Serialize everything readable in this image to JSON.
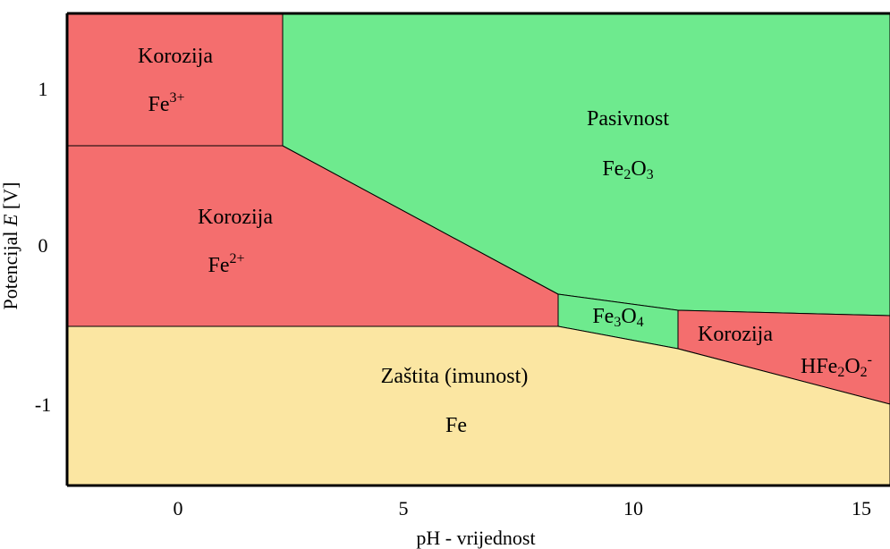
{
  "diagram": {
    "x_axis": {
      "label": "pH - vrijednost",
      "ticks": [
        {
          "value": 0,
          "label": "0"
        },
        {
          "value": 5,
          "label": "5"
        },
        {
          "value": 10,
          "label": "10"
        },
        {
          "value": 15,
          "label": "15"
        }
      ]
    },
    "y_axis": {
      "label_prefix": "Potencijal ",
      "label_italic": "E",
      "label_suffix": " [V]",
      "ticks": [
        {
          "value": 1,
          "label": "1"
        },
        {
          "value": 0,
          "label": "0"
        },
        {
          "value": -1,
          "label": "-1"
        }
      ]
    },
    "colors": {
      "corrosion": "#f46e6e",
      "passivity": "#6eea8e",
      "immunity": "#fbe6a2",
      "border": "#000000"
    },
    "regions": {
      "corrosion_fe3": {
        "title": "Korozija",
        "species": "Fe",
        "sup": "3+"
      },
      "corrosion_fe2": {
        "title": "Korozija",
        "species": "Fe",
        "sup": "2+"
      },
      "passivity": {
        "title": "Pasivnost",
        "species_a": "Fe",
        "sub_a": "2",
        "species_b": "O",
        "sub_b": "3"
      },
      "magnetite": {
        "species_a": "Fe",
        "sub_a": "3",
        "species_b": "O",
        "sub_b": "4"
      },
      "corrosion_hfe2o2": {
        "title": "Korozija",
        "species_a": "HFe",
        "sub_a": "2",
        "species_b": "O",
        "sub_b": "2",
        "sup": "-"
      },
      "immunity": {
        "title": "Zaštita (imunost)",
        "species": "Fe"
      }
    }
  }
}
